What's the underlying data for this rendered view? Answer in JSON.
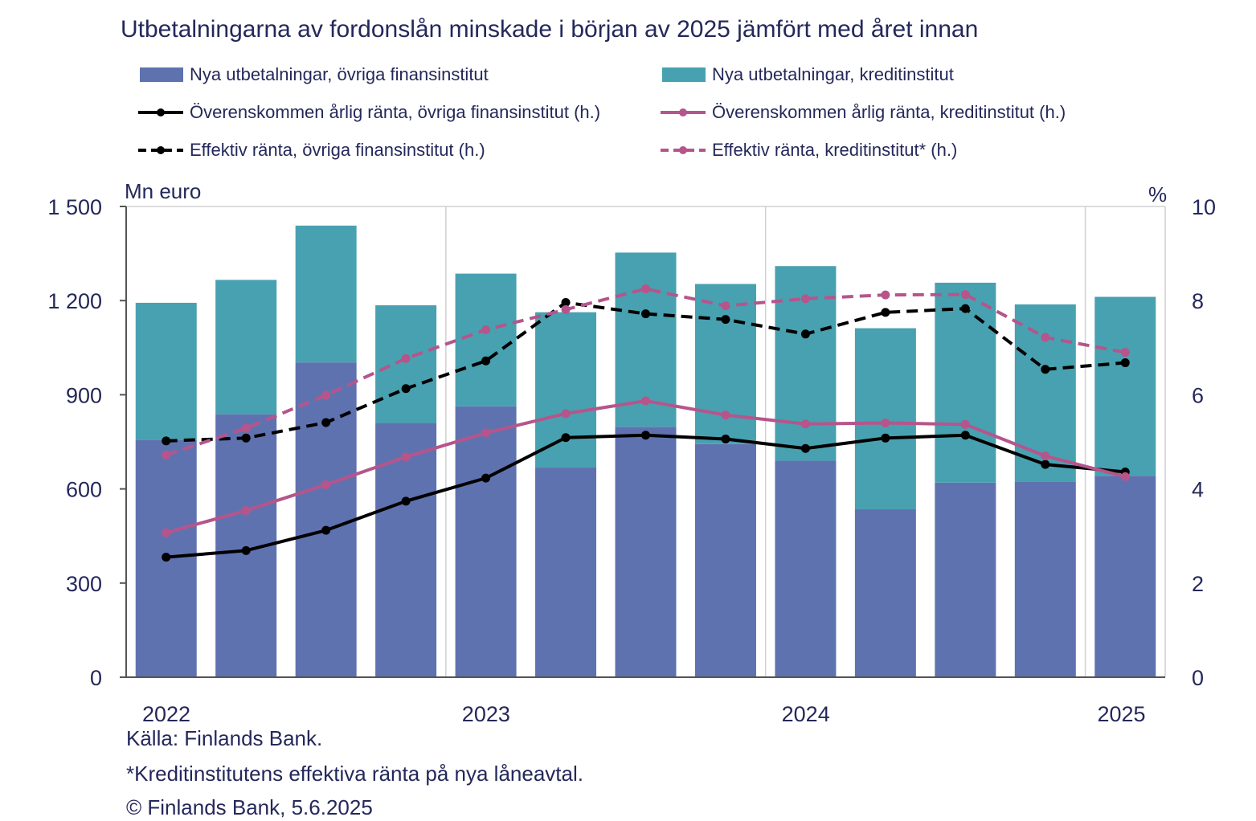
{
  "chart_data": {
    "type": "bar",
    "title": "Utbetalningarna av fordonslån minskade i början av 2025 jämfört med året innan",
    "ylabel_left": "Mn euro",
    "ylabel_right": "%",
    "ylim_left": [
      0,
      1500
    ],
    "ylim_right": [
      0,
      10
    ],
    "yticks_left": [
      "0",
      "300",
      "600",
      "900",
      "1 200",
      "1 500"
    ],
    "yticks_right": [
      "0",
      "2",
      "4",
      "6",
      "8",
      "10"
    ],
    "x_year_labels": [
      "2022",
      "2023",
      "2024",
      "2025"
    ],
    "categories": [
      "2022Q1",
      "2022Q2",
      "2022Q3",
      "2022Q4",
      "2023Q1",
      "2023Q2",
      "2023Q3",
      "2023Q4",
      "2024Q1",
      "2024Q2",
      "2024Q3",
      "2024Q4",
      "2025Q1"
    ],
    "stacked": true,
    "grid": "vertical",
    "legend_position": "top",
    "series": [
      {
        "name": "Nya utbetalningar, övriga finansinstitut",
        "kind": "bar",
        "axis": "left",
        "color": "#5f72b0",
        "values": [
          757,
          838,
          1003,
          810,
          863,
          668,
          798,
          743,
          690,
          535,
          620,
          623,
          642
        ]
      },
      {
        "name": "Nya utbetalningar, kreditinstitut",
        "kind": "bar",
        "axis": "left",
        "color": "#48a1b0",
        "values": [
          436,
          428,
          436,
          375,
          423,
          495,
          555,
          510,
          620,
          577,
          637,
          565,
          570
        ]
      },
      {
        "name": "Överenskommen årlig ränta, övriga finansinstitut (h.)",
        "kind": "line",
        "axis": "right",
        "color": "#000000",
        "dash": false,
        "values": [
          2.55,
          2.69,
          3.12,
          3.74,
          4.23,
          5.09,
          5.14,
          5.06,
          4.86,
          5.08,
          5.14,
          4.52,
          4.36
        ]
      },
      {
        "name": "Överenskommen årlig ränta, kreditinstitut (h.)",
        "kind": "line",
        "axis": "right",
        "color": "#b5558c",
        "dash": false,
        "values": [
          3.07,
          3.54,
          4.09,
          4.68,
          5.19,
          5.6,
          5.87,
          5.57,
          5.38,
          5.4,
          5.37,
          4.7,
          4.26
        ]
      },
      {
        "name": "Effektiv ränta, övriga finansinstitut (h.)",
        "kind": "line",
        "axis": "right",
        "color": "#000000",
        "dash": true,
        "values": [
          5.02,
          5.08,
          5.41,
          6.13,
          6.72,
          7.96,
          7.72,
          7.6,
          7.29,
          7.75,
          7.83,
          6.54,
          6.68
        ]
      },
      {
        "name": "Effektiv ränta, kreditinstitut* (h.)",
        "kind": "line",
        "axis": "right",
        "color": "#b5558c",
        "dash": true,
        "values": [
          4.72,
          5.29,
          5.99,
          6.77,
          7.38,
          7.81,
          8.25,
          7.89,
          8.04,
          8.12,
          8.13,
          7.22,
          6.9
        ]
      }
    ]
  },
  "footer": {
    "source": "Källa: Finlands Bank.",
    "note": "*Kreditinstitutens effektiva ränta på nya låneavtal.",
    "copyright": "© Finlands Bank, 5.6.2025"
  }
}
